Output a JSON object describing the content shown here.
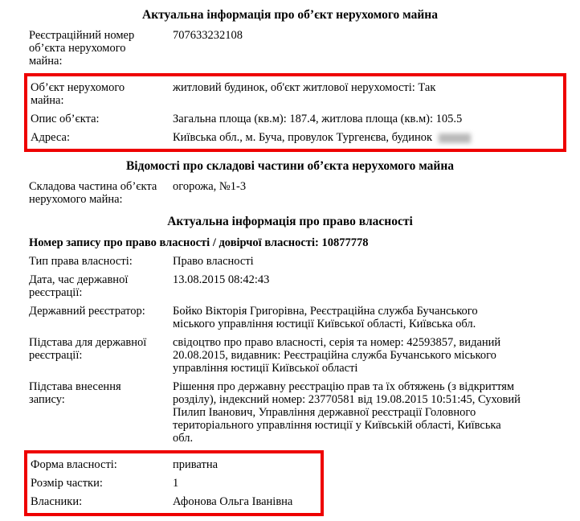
{
  "colors": {
    "highlight": "#ee0000",
    "text": "#000000",
    "background": "#ffffff",
    "redaction_blur": "#b9b9b9"
  },
  "object_info": {
    "title": "Актуальна інформація про об’єкт нерухомого майна",
    "reg_number": {
      "label": "Реєстраційний номер\nоб’єкта нерухомого\nмайна:",
      "value": "707633232108"
    },
    "highlighted": {
      "object": {
        "label": "Об’єкт нерухомого\nмайна:",
        "value": "житловий будинок, об'єкт житлової нерухомості: Так"
      },
      "description": {
        "label": "Опис об’єкта:",
        "value": "Загальна площа (кв.м): 187.4, житлова площа (кв.м): 105.5"
      },
      "address": {
        "label": "Адреса:",
        "value": "Київська обл., м. Буча, провулок Тургенєва, будинок"
      }
    }
  },
  "components": {
    "title": "Відомості про складові частини об’єкта нерухомого майна",
    "component": {
      "label": "Складова частина об’єкта\nнерухомого майна:",
      "value": "огорожа, №1-3"
    }
  },
  "ownership": {
    "title": "Актуальна інформація про право власності",
    "record_number_line": "Номер запису про право власності / довірчої власності: 10877778",
    "rows": [
      {
        "label": "Тип права власності:",
        "value": "Право власності"
      },
      {
        "label": "Дата, час державної\nреєстрації:",
        "value": "13.08.2015 08:42:43"
      },
      {
        "label": "Державний реєстратор:",
        "value": "Бойко Вікторія Григорівна, Реєстраційна служба Бучанського\nміського управління юстиції Київської області, Київська обл."
      },
      {
        "label": "Підстава для державної\nреєстрації:",
        "value": "свідоцтво про право власності, серія та номер: 42593857, виданий\n20.08.2015, видавник: Реєстраційна служба Бучанського міського\nуправління юстиції Київської області"
      },
      {
        "label": "Підстава внесення\nзапису:",
        "value": "Рішення про державну реєстрацію прав та їх обтяжень (з відкриттям\nрозділу), індексний номер: 23770581 від 19.08.2015 10:51:45, Суховий\nПилип Іванович, Управління державної реєстрації Головного\nтериторіального управління юстиції у Київській області, Київська\nобл."
      }
    ],
    "highlighted": {
      "form": {
        "label": "Форма власності:",
        "value": "приватна"
      },
      "share": {
        "label": "Розмір частки:",
        "value": "1"
      },
      "owners": {
        "label": "Власники:",
        "value": "Афонова Ольга Іванівна"
      }
    }
  }
}
